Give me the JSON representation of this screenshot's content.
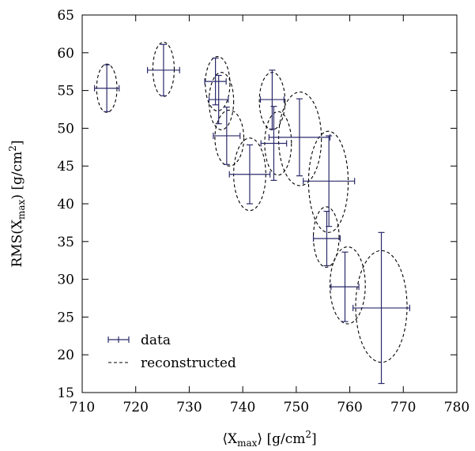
{
  "chart_data": {
    "type": "scatter",
    "xlabel_parts": {
      "pre": "⟨X",
      "sub": "max",
      "post": "⟩ [g/cm",
      "sup": "2",
      "end": "]"
    },
    "ylabel_parts": {
      "pre": "RMS(X",
      "sub": "max",
      "post": ") [g/cm",
      "sup": "2",
      "end": "]"
    },
    "xlim": [
      710,
      780
    ],
    "ylim": [
      15,
      65
    ],
    "xticks": [
      710,
      720,
      730,
      740,
      750,
      760,
      770,
      780
    ],
    "yticks": [
      15,
      20,
      25,
      30,
      35,
      40,
      45,
      50,
      55,
      60,
      65
    ],
    "grid": false,
    "legend_position": "bottom-left",
    "series": [
      {
        "name": "data",
        "style": "points-with-xy-errorbars",
        "color": "#2b2a6b",
        "points": [
          {
            "x": 714.6,
            "y": 55.3,
            "xerr": 2.3,
            "yerr": 3.1
          },
          {
            "x": 725.2,
            "y": 57.7,
            "xerr": 3.0,
            "yerr": 3.4
          },
          {
            "x": 734.9,
            "y": 56.2,
            "xerr": 2.0,
            "yerr": 3.1
          },
          {
            "x": 735.5,
            "y": 53.8,
            "xerr": 1.8,
            "yerr": 3.2
          },
          {
            "x": 737.0,
            "y": 49.0,
            "xerr": 2.5,
            "yerr": 3.8
          },
          {
            "x": 741.3,
            "y": 43.9,
            "xerr": 3.8,
            "yerr": 3.9
          },
          {
            "x": 745.5,
            "y": 53.8,
            "xerr": 2.2,
            "yerr": 3.9
          },
          {
            "x": 745.8,
            "y": 48.0,
            "xerr": 2.4,
            "yerr": 4.9
          },
          {
            "x": 750.6,
            "y": 48.8,
            "xerr": 5.7,
            "yerr": 5.1
          },
          {
            "x": 756.1,
            "y": 43.0,
            "xerr": 4.8,
            "yerr": 6.0
          },
          {
            "x": 755.7,
            "y": 35.4,
            "xerr": 2.5,
            "yerr": 3.6
          },
          {
            "x": 759.1,
            "y": 29.0,
            "xerr": 2.6,
            "yerr": 4.6
          },
          {
            "x": 765.9,
            "y": 26.2,
            "xerr": 5.3,
            "yerr": 10.0
          }
        ]
      },
      {
        "name": "reconstructed",
        "style": "dashed-ellipses",
        "color": "#000000",
        "ellipses": [
          {
            "cx": 714.6,
            "cy": 55.3,
            "rx": 1.9,
            "ry": 3.2
          },
          {
            "cx": 725.2,
            "cy": 57.8,
            "rx": 2.0,
            "ry": 3.6
          },
          {
            "cx": 735.3,
            "cy": 55.9,
            "rx": 2.3,
            "ry": 3.6
          },
          {
            "cx": 736.0,
            "cy": 53.6,
            "rx": 2.3,
            "ry": 3.8
          },
          {
            "cx": 737.5,
            "cy": 48.7,
            "rx": 2.7,
            "ry": 3.7
          },
          {
            "cx": 741.3,
            "cy": 43.9,
            "rx": 3.0,
            "ry": 4.8
          },
          {
            "cx": 745.5,
            "cy": 53.6,
            "rx": 2.4,
            "ry": 3.8
          },
          {
            "cx": 746.6,
            "cy": 48.0,
            "rx": 2.5,
            "ry": 4.2
          },
          {
            "cx": 750.7,
            "cy": 48.6,
            "rx": 4.0,
            "ry": 6.2
          },
          {
            "cx": 756.0,
            "cy": 42.9,
            "rx": 3.7,
            "ry": 6.7
          },
          {
            "cx": 755.6,
            "cy": 35.6,
            "rx": 2.4,
            "ry": 4.0
          },
          {
            "cx": 759.6,
            "cy": 29.2,
            "rx": 3.3,
            "ry": 5.1
          },
          {
            "cx": 765.9,
            "cy": 26.4,
            "rx": 4.8,
            "ry": 7.4
          }
        ]
      }
    ]
  }
}
